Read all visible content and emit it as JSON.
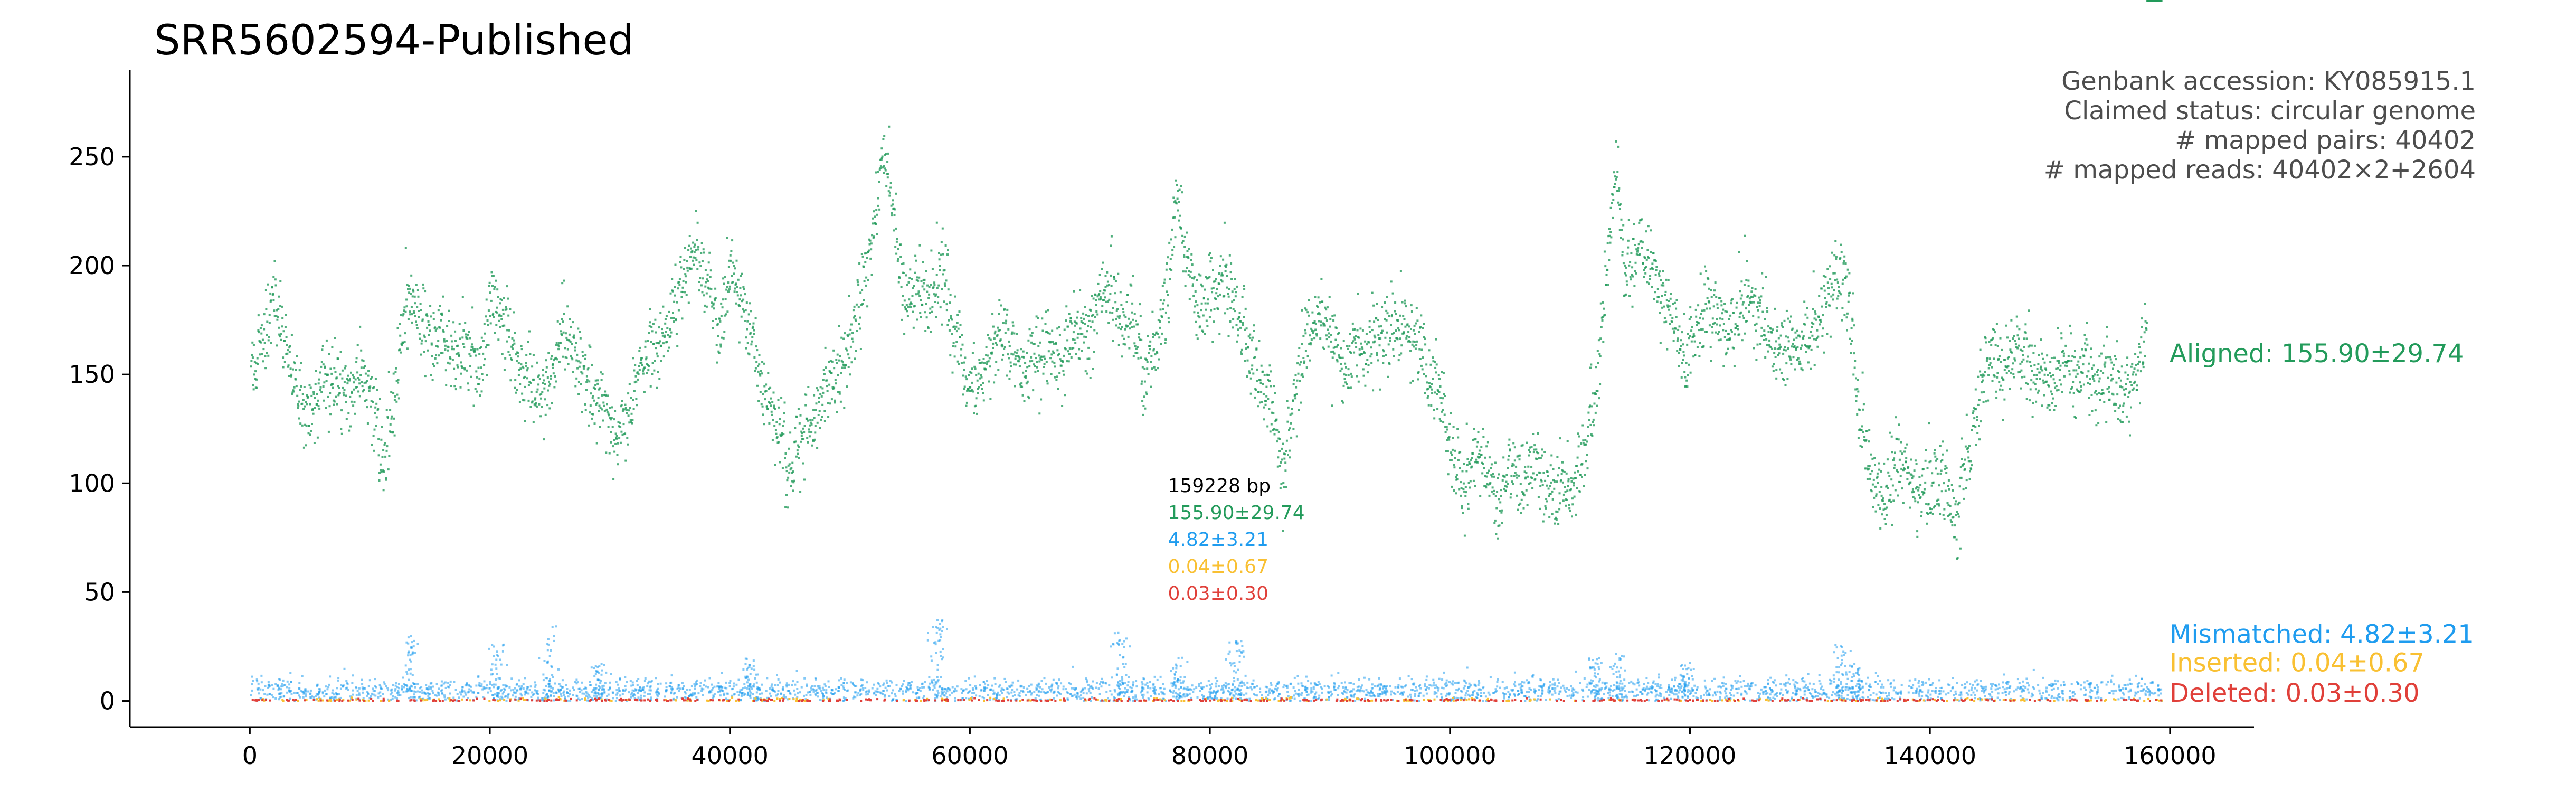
{
  "chart_data": {
    "type": "scatter",
    "title": "SRR5602594-Published",
    "xlabel": "",
    "ylabel": "",
    "xlim": [
      -10000,
      167000
    ],
    "ylim": [
      -12,
      290
    ],
    "xticks": [
      0,
      20000,
      40000,
      60000,
      80000,
      100000,
      120000,
      140000,
      160000
    ],
    "yticks": [
      0,
      50,
      100,
      150,
      200,
      250
    ],
    "info_lines": [
      "Genbank accession: KY085915.1",
      "Claimed status: circular genome",
      "# mapped pairs: 40402",
      "# mapped reads: 40402×2+2604"
    ],
    "summary": {
      "length_label": "159228 bp",
      "x": 76500,
      "lines": [
        {
          "text": "155.90±29.74",
          "color": "#239b5b"
        },
        {
          "text": "4.82±3.21",
          "color": "#1f9cef"
        },
        {
          "text": "0.04±0.67",
          "color": "#f9c032"
        },
        {
          "text": "0.03±0.30",
          "color": "#e0403a"
        }
      ]
    },
    "genome_length": 159228,
    "series": [
      {
        "name": "Aligned",
        "label": "Aligned: 155.90±29.74",
        "color": "#239b5b",
        "label_y": 160,
        "profile_x": [
          0,
          1000,
          2000,
          3000,
          4000,
          5000,
          6000,
          7000,
          8000,
          9000,
          10000,
          11000,
          12000,
          13000,
          14000,
          15000,
          16000,
          17000,
          18000,
          19000,
          20000,
          21000,
          22000,
          23000,
          24000,
          25000,
          26000,
          27000,
          28000,
          29000,
          30000,
          31000,
          32000,
          33000,
          34000,
          35000,
          36000,
          37000,
          38000,
          39000,
          40000,
          41000,
          42000,
          43000,
          44000,
          45000,
          46000,
          47000,
          48000,
          49000,
          50000,
          51000,
          52000,
          52700,
          53500,
          54500,
          55500,
          56500,
          57500,
          58500,
          59500,
          60500,
          61500,
          62500,
          63500,
          64500,
          65500,
          66500,
          67500,
          68500,
          69500,
          70500,
          71500,
          72500,
          73500,
          74500,
          75500,
          76500,
          77200,
          78000,
          79000,
          80000,
          81000,
          82000,
          83000,
          84000,
          85000,
          86000,
          87000,
          88000,
          89000,
          90000,
          91000,
          92000,
          93000,
          94000,
          95000,
          96000,
          97000,
          98000,
          99000,
          100000,
          101000,
          102000,
          103000,
          104000,
          105000,
          106000,
          107000,
          108000,
          109000,
          110000,
          111000,
          112000,
          113000,
          113800,
          114500,
          115500,
          116500,
          117500,
          118500,
          119500,
          120500,
          121500,
          122500,
          123500,
          124500,
          125500,
          126500,
          127500,
          128500,
          129500,
          130500,
          131500,
          132500,
          133200,
          134000,
          135000,
          136000,
          137000,
          138000,
          139000,
          140000,
          141000,
          142000,
          143000,
          144000,
          145000,
          146000,
          147000,
          148000,
          149000,
          150000,
          151000,
          152000,
          153000,
          154000,
          155000,
          156000,
          157000,
          158000,
          159228
        ],
        "profile_y": [
          150,
          165,
          185,
          160,
          140,
          130,
          150,
          145,
          140,
          150,
          145,
          110,
          140,
          185,
          175,
          165,
          170,
          160,
          165,
          150,
          185,
          175,
          155,
          150,
          140,
          150,
          170,
          160,
          145,
          140,
          130,
          120,
          145,
          160,
          165,
          175,
          195,
          205,
          190,
          170,
          200,
          180,
          165,
          140,
          125,
          105,
          125,
          130,
          145,
          150,
          165,
          190,
          220,
          255,
          220,
          185,
          190,
          185,
          200,
          175,
          145,
          140,
          160,
          170,
          165,
          150,
          160,
          165,
          155,
          175,
          170,
          180,
          195,
          175,
          175,
          150,
          165,
          190,
          235,
          200,
          175,
          190,
          195,
          180,
          165,
          150,
          140,
          105,
          145,
          170,
          175,
          165,
          150,
          165,
          160,
          170,
          165,
          175,
          165,
          155,
          145,
          115,
          100,
          115,
          105,
          90,
          110,
          100,
          110,
          95,
          100,
          95,
          115,
          140,
          200,
          245,
          195,
          210,
          205,
          185,
          175,
          160,
          170,
          180,
          175,
          170,
          185,
          180,
          170,
          165,
          160,
          170,
          175,
          185,
          200,
          180,
          135,
          105,
          95,
          110,
          105,
          95,
          100,
          105,
          80,
          110,
          140,
          160,
          150,
          165,
          155,
          150,
          145,
          160,
          150,
          155,
          145,
          150,
          140,
          150,
          170
        ]
      },
      {
        "name": "Mismatched",
        "label": "Mismatched: 4.82±3.21",
        "color": "#1f9cef",
        "label_y": 31,
        "mean": 4.82,
        "sd": 3.21,
        "spikes": [
          [
            13200,
            30
          ],
          [
            20500,
            28
          ],
          [
            24800,
            35
          ],
          [
            29000,
            18
          ],
          [
            41500,
            22
          ],
          [
            57300,
            38
          ],
          [
            72500,
            32
          ],
          [
            77300,
            20
          ],
          [
            82200,
            28
          ],
          [
            112000,
            20
          ],
          [
            114000,
            22
          ],
          [
            119500,
            18
          ],
          [
            132500,
            26
          ],
          [
            133600,
            18
          ]
        ]
      },
      {
        "name": "Inserted",
        "label": "Inserted: 0.04±0.67",
        "color": "#f9c032",
        "label_y": 18,
        "mean": 0.04,
        "sd": 0.67
      },
      {
        "name": "Deleted",
        "label": "Deleted: 0.03±0.30",
        "color": "#e0403a",
        "label_y": 4,
        "mean": 0.03,
        "sd": 0.3
      }
    ],
    "grid": false,
    "legend": "right-of-plot"
  }
}
